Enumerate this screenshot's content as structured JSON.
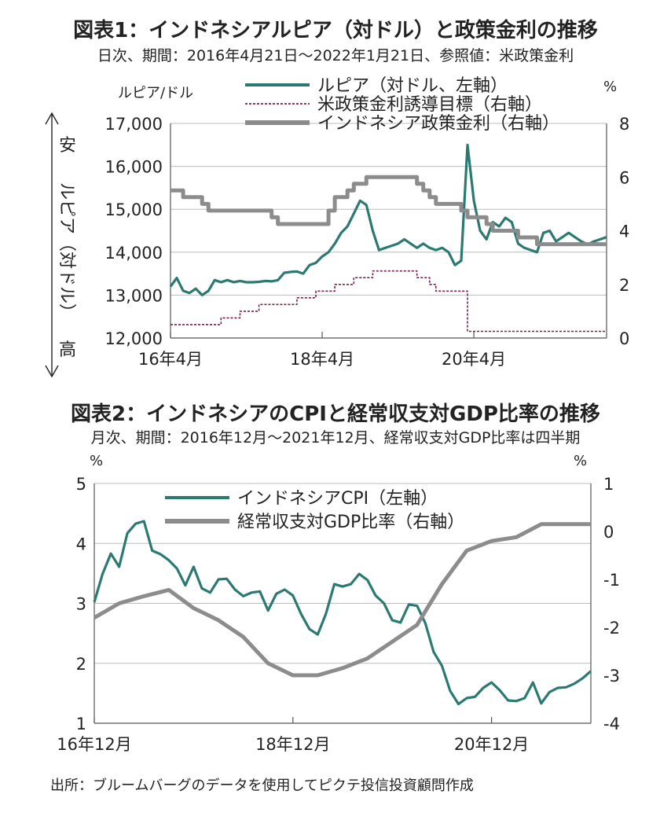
{
  "chart_data": [
    {
      "type": "line",
      "title": "図表1：インドネシアルピア（対ドル）と政策金利の推移",
      "subtitle": "日次、期間：2016年4月21日～2022年1月21日、参照値：米政策金利",
      "ylabel_left_unit": "ルピア/ドル",
      "ylabel_right_unit": "%",
      "ylabel_top": "安",
      "ylabel_mid": "ルピア（対ドル）",
      "ylabel_bottom": "高",
      "x_ticks": [
        "16年4月",
        "18年4月",
        "20年4月"
      ],
      "x_tick_dates": [
        "2016-04",
        "2018-04",
        "2020-04"
      ],
      "xlim": [
        "2016-04",
        "2022-01"
      ],
      "ylim_left": [
        12000,
        17000
      ],
      "yticks_left": [
        "12,000",
        "13,000",
        "14,000",
        "15,000",
        "16,000",
        "17,000"
      ],
      "ylim_right": [
        0,
        8
      ],
      "yticks_right": [
        "0",
        "2",
        "4",
        "6",
        "8"
      ],
      "legend": "top-center",
      "grid": "horizontal",
      "series": [
        {
          "name": "ルピア（対ドル、左軸）",
          "axis": "left",
          "color": "#2b7a72",
          "x": [
            "2016-04",
            "2016-05",
            "2016-06",
            "2016-07",
            "2016-08",
            "2016-09",
            "2016-10",
            "2016-11",
            "2016-12",
            "2017-01",
            "2017-02",
            "2017-03",
            "2017-04",
            "2017-05",
            "2017-06",
            "2017-07",
            "2017-08",
            "2017-09",
            "2017-10",
            "2017-11",
            "2017-12",
            "2018-01",
            "2018-02",
            "2018-03",
            "2018-04",
            "2018-05",
            "2018-06",
            "2018-07",
            "2018-08",
            "2018-09",
            "2018-10",
            "2018-11",
            "2018-12",
            "2019-01",
            "2019-02",
            "2019-03",
            "2019-04",
            "2019-05",
            "2019-06",
            "2019-07",
            "2019-08",
            "2019-09",
            "2019-10",
            "2019-11",
            "2019-12",
            "2020-01",
            "2020-02",
            "2020-03",
            "2020-04",
            "2020-05",
            "2020-06",
            "2020-07",
            "2020-08",
            "2020-09",
            "2020-10",
            "2020-11",
            "2020-12",
            "2021-01",
            "2021-02",
            "2021-03",
            "2021-04",
            "2021-05",
            "2021-06",
            "2021-07",
            "2021-08",
            "2021-09",
            "2021-10",
            "2021-11",
            "2021-12",
            "2022-01"
          ],
          "y": [
            13200,
            13400,
            13100,
            13050,
            13150,
            13000,
            13100,
            13350,
            13300,
            13350,
            13300,
            13330,
            13300,
            13300,
            13310,
            13330,
            13320,
            13350,
            13520,
            13540,
            13550,
            13500,
            13700,
            13750,
            13900,
            14000,
            14200,
            14450,
            14600,
            14900,
            15200,
            15100,
            14500,
            14050,
            14100,
            14150,
            14200,
            14300,
            14200,
            14100,
            14200,
            14100,
            14050,
            14100,
            14000,
            13700,
            13800,
            16500,
            15200,
            14500,
            14300,
            14700,
            14600,
            14800,
            14700,
            14200,
            14100,
            14050,
            14000,
            14450,
            14500,
            14250,
            14350,
            14450,
            14350,
            14250,
            14180,
            14250,
            14300,
            14350
          ]
        },
        {
          "name": "米政策金利誘導目標（右軸）",
          "axis": "right",
          "color": "#7a1f4a",
          "x": [
            "2016-04",
            "2016-12",
            "2017-03",
            "2017-06",
            "2017-12",
            "2018-03",
            "2018-06",
            "2018-09",
            "2018-12",
            "2019-07",
            "2019-09",
            "2019-10",
            "2020-03",
            "2022-01"
          ],
          "y": [
            0.5,
            0.75,
            1.0,
            1.25,
            1.5,
            1.75,
            2.0,
            2.25,
            2.5,
            2.25,
            2.0,
            1.75,
            0.25,
            0.25
          ]
        },
        {
          "name": "インドネシア政策金利（右軸）",
          "axis": "right",
          "color": "#8c8c8c",
          "x": [
            "2016-04",
            "2016-06",
            "2016-08",
            "2016-09",
            "2016-10",
            "2017-08",
            "2017-09",
            "2018-05",
            "2018-06",
            "2018-08",
            "2018-09",
            "2018-11",
            "2019-07",
            "2019-08",
            "2019-09",
            "2019-10",
            "2020-02",
            "2020-03",
            "2020-06",
            "2020-07",
            "2020-11",
            "2021-02",
            "2022-01"
          ],
          "y": [
            5.5,
            5.25,
            5.25,
            5.0,
            4.75,
            4.5,
            4.25,
            4.75,
            5.25,
            5.5,
            5.75,
            6.0,
            5.75,
            5.5,
            5.25,
            5.0,
            4.75,
            4.5,
            4.25,
            4.0,
            3.75,
            3.5,
            3.5
          ]
        }
      ]
    },
    {
      "type": "line",
      "title": "図表2：インドネシアのCPIと経常収支対GDP比率の推移",
      "subtitle": "月次、期間：2016年12月～2021年12月、経常収支対GDP比率は四半期",
      "ylabel_left_unit": "%",
      "ylabel_right_unit": "%",
      "x_ticks": [
        "16年12月",
        "18年12月",
        "20年12月"
      ],
      "x_tick_dates": [
        "2016-12",
        "2018-12",
        "2020-12"
      ],
      "xlim": [
        "2016-12",
        "2021-12"
      ],
      "ylim_left": [
        1,
        5
      ],
      "yticks_left": [
        "1",
        "2",
        "3",
        "4",
        "5"
      ],
      "ylim_right": [
        -4,
        1
      ],
      "yticks_right": [
        "-4",
        "-3",
        "-2",
        "-1",
        "0",
        "1"
      ],
      "legend": "top-center",
      "grid": "horizontal",
      "series": [
        {
          "name": "インドネシアCPI（左軸）",
          "axis": "left",
          "color": "#2b7a72",
          "x": [
            "2016-12",
            "2017-01",
            "2017-02",
            "2017-03",
            "2017-04",
            "2017-05",
            "2017-06",
            "2017-07",
            "2017-08",
            "2017-09",
            "2017-10",
            "2017-11",
            "2017-12",
            "2018-01",
            "2018-02",
            "2018-03",
            "2018-04",
            "2018-05",
            "2018-06",
            "2018-07",
            "2018-08",
            "2018-09",
            "2018-10",
            "2018-11",
            "2018-12",
            "2019-01",
            "2019-02",
            "2019-03",
            "2019-04",
            "2019-05",
            "2019-06",
            "2019-07",
            "2019-08",
            "2019-09",
            "2019-10",
            "2019-11",
            "2019-12",
            "2020-01",
            "2020-02",
            "2020-03",
            "2020-04",
            "2020-05",
            "2020-06",
            "2020-07",
            "2020-08",
            "2020-09",
            "2020-10",
            "2020-11",
            "2020-12",
            "2021-01",
            "2021-02",
            "2021-03",
            "2021-04",
            "2021-05",
            "2021-06",
            "2021-07",
            "2021-08",
            "2021-09",
            "2021-10",
            "2021-11",
            "2021-12"
          ],
          "y": [
            3.02,
            3.49,
            3.83,
            3.61,
            4.17,
            4.33,
            4.37,
            3.88,
            3.82,
            3.72,
            3.58,
            3.3,
            3.61,
            3.25,
            3.18,
            3.4,
            3.41,
            3.23,
            3.12,
            3.18,
            3.2,
            2.88,
            3.16,
            3.23,
            3.13,
            2.82,
            2.57,
            2.48,
            2.83,
            3.32,
            3.28,
            3.32,
            3.49,
            3.39,
            3.13,
            3.0,
            2.72,
            2.68,
            2.98,
            2.96,
            2.67,
            2.19,
            1.96,
            1.54,
            1.32,
            1.42,
            1.44,
            1.59,
            1.68,
            1.55,
            1.38,
            1.37,
            1.42,
            1.68,
            1.33,
            1.52,
            1.59,
            1.6,
            1.66,
            1.75,
            1.87
          ]
        },
        {
          "name": "経常収支対GDP比率（右軸）",
          "axis": "right",
          "color": "#8c8c8c",
          "x": [
            "2016-12",
            "2017-03",
            "2017-06",
            "2017-09",
            "2017-12",
            "2018-03",
            "2018-06",
            "2018-09",
            "2018-12",
            "2019-03",
            "2019-06",
            "2019-09",
            "2019-12",
            "2020-03",
            "2020-06",
            "2020-09",
            "2020-12",
            "2021-03",
            "2021-06",
            "2021-09",
            "2021-12"
          ],
          "y": [
            -1.8,
            -1.5,
            -1.35,
            -1.22,
            -1.6,
            -1.85,
            -2.2,
            -2.75,
            -3.0,
            -3.0,
            -2.85,
            -2.65,
            -2.3,
            -1.95,
            -1.1,
            -0.4,
            -0.2,
            -0.12,
            0.15,
            0.15,
            0.15
          ]
        }
      ]
    }
  ],
  "source": "出所：ブルームバーグのデータを使用してピクテ投信投資顧問作成"
}
